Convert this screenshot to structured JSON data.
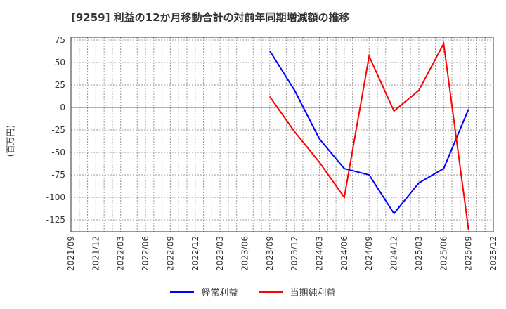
{
  "chart_data": {
    "type": "line",
    "title": "[9259]  利益の12か月移動合計の対前年同期増減額の推移",
    "ylabel": "(百万円)",
    "xlabel": "",
    "ylim": [
      -140,
      78
    ],
    "yticks": [
      75,
      50,
      25,
      0,
      -25,
      -50,
      -75,
      -100,
      -125
    ],
    "categories": [
      "2021/09",
      "2021/12",
      "2022/03",
      "2022/06",
      "2022/09",
      "2022/12",
      "2023/03",
      "2023/06",
      "2023/09",
      "2023/12",
      "2024/03",
      "2024/06",
      "2024/09",
      "2024/12",
      "2025/03",
      "2025/06",
      "2025/09",
      "2025/12"
    ],
    "grid": true,
    "legend": "bottom",
    "series": [
      {
        "name": "経常利益",
        "color": "#0000ff",
        "values": [
          null,
          null,
          null,
          null,
          null,
          null,
          null,
          null,
          63,
          19,
          -35,
          -68,
          -75,
          -118,
          -84,
          -68,
          -2,
          null
        ]
      },
      {
        "name": "当期純利益",
        "color": "#ff0000",
        "values": [
          null,
          null,
          null,
          null,
          null,
          null,
          null,
          null,
          12,
          -27,
          -61,
          -100,
          57,
          -4,
          19,
          71,
          -136,
          null
        ]
      }
    ]
  }
}
